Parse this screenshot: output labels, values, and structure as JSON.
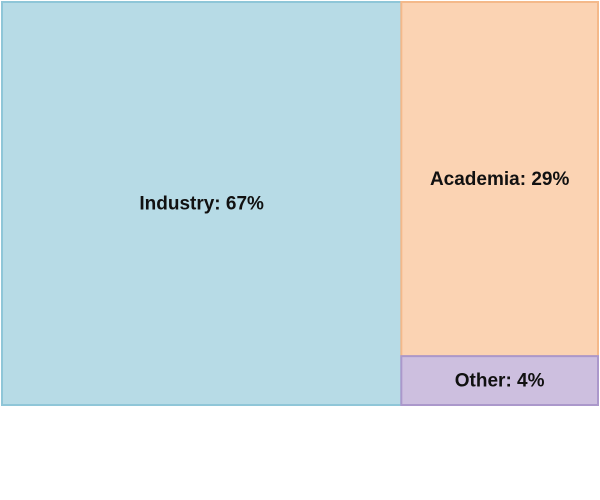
{
  "chart_data": {
    "type": "treemap",
    "title": "",
    "tiles": [
      {
        "label": "Industry: 67%",
        "name": "Industry",
        "value": 67,
        "color": "#b7dbe6",
        "border": "#8fc6d8"
      },
      {
        "label": "Academia: 29%",
        "name": "Academia",
        "value": 29,
        "color": "#fbd3b3",
        "border": "#f4b98a"
      },
      {
        "label": "Other: 4%",
        "name": "Other",
        "value": 4,
        "color": "#cdbfdf",
        "border": "#ab98cb"
      }
    ]
  }
}
